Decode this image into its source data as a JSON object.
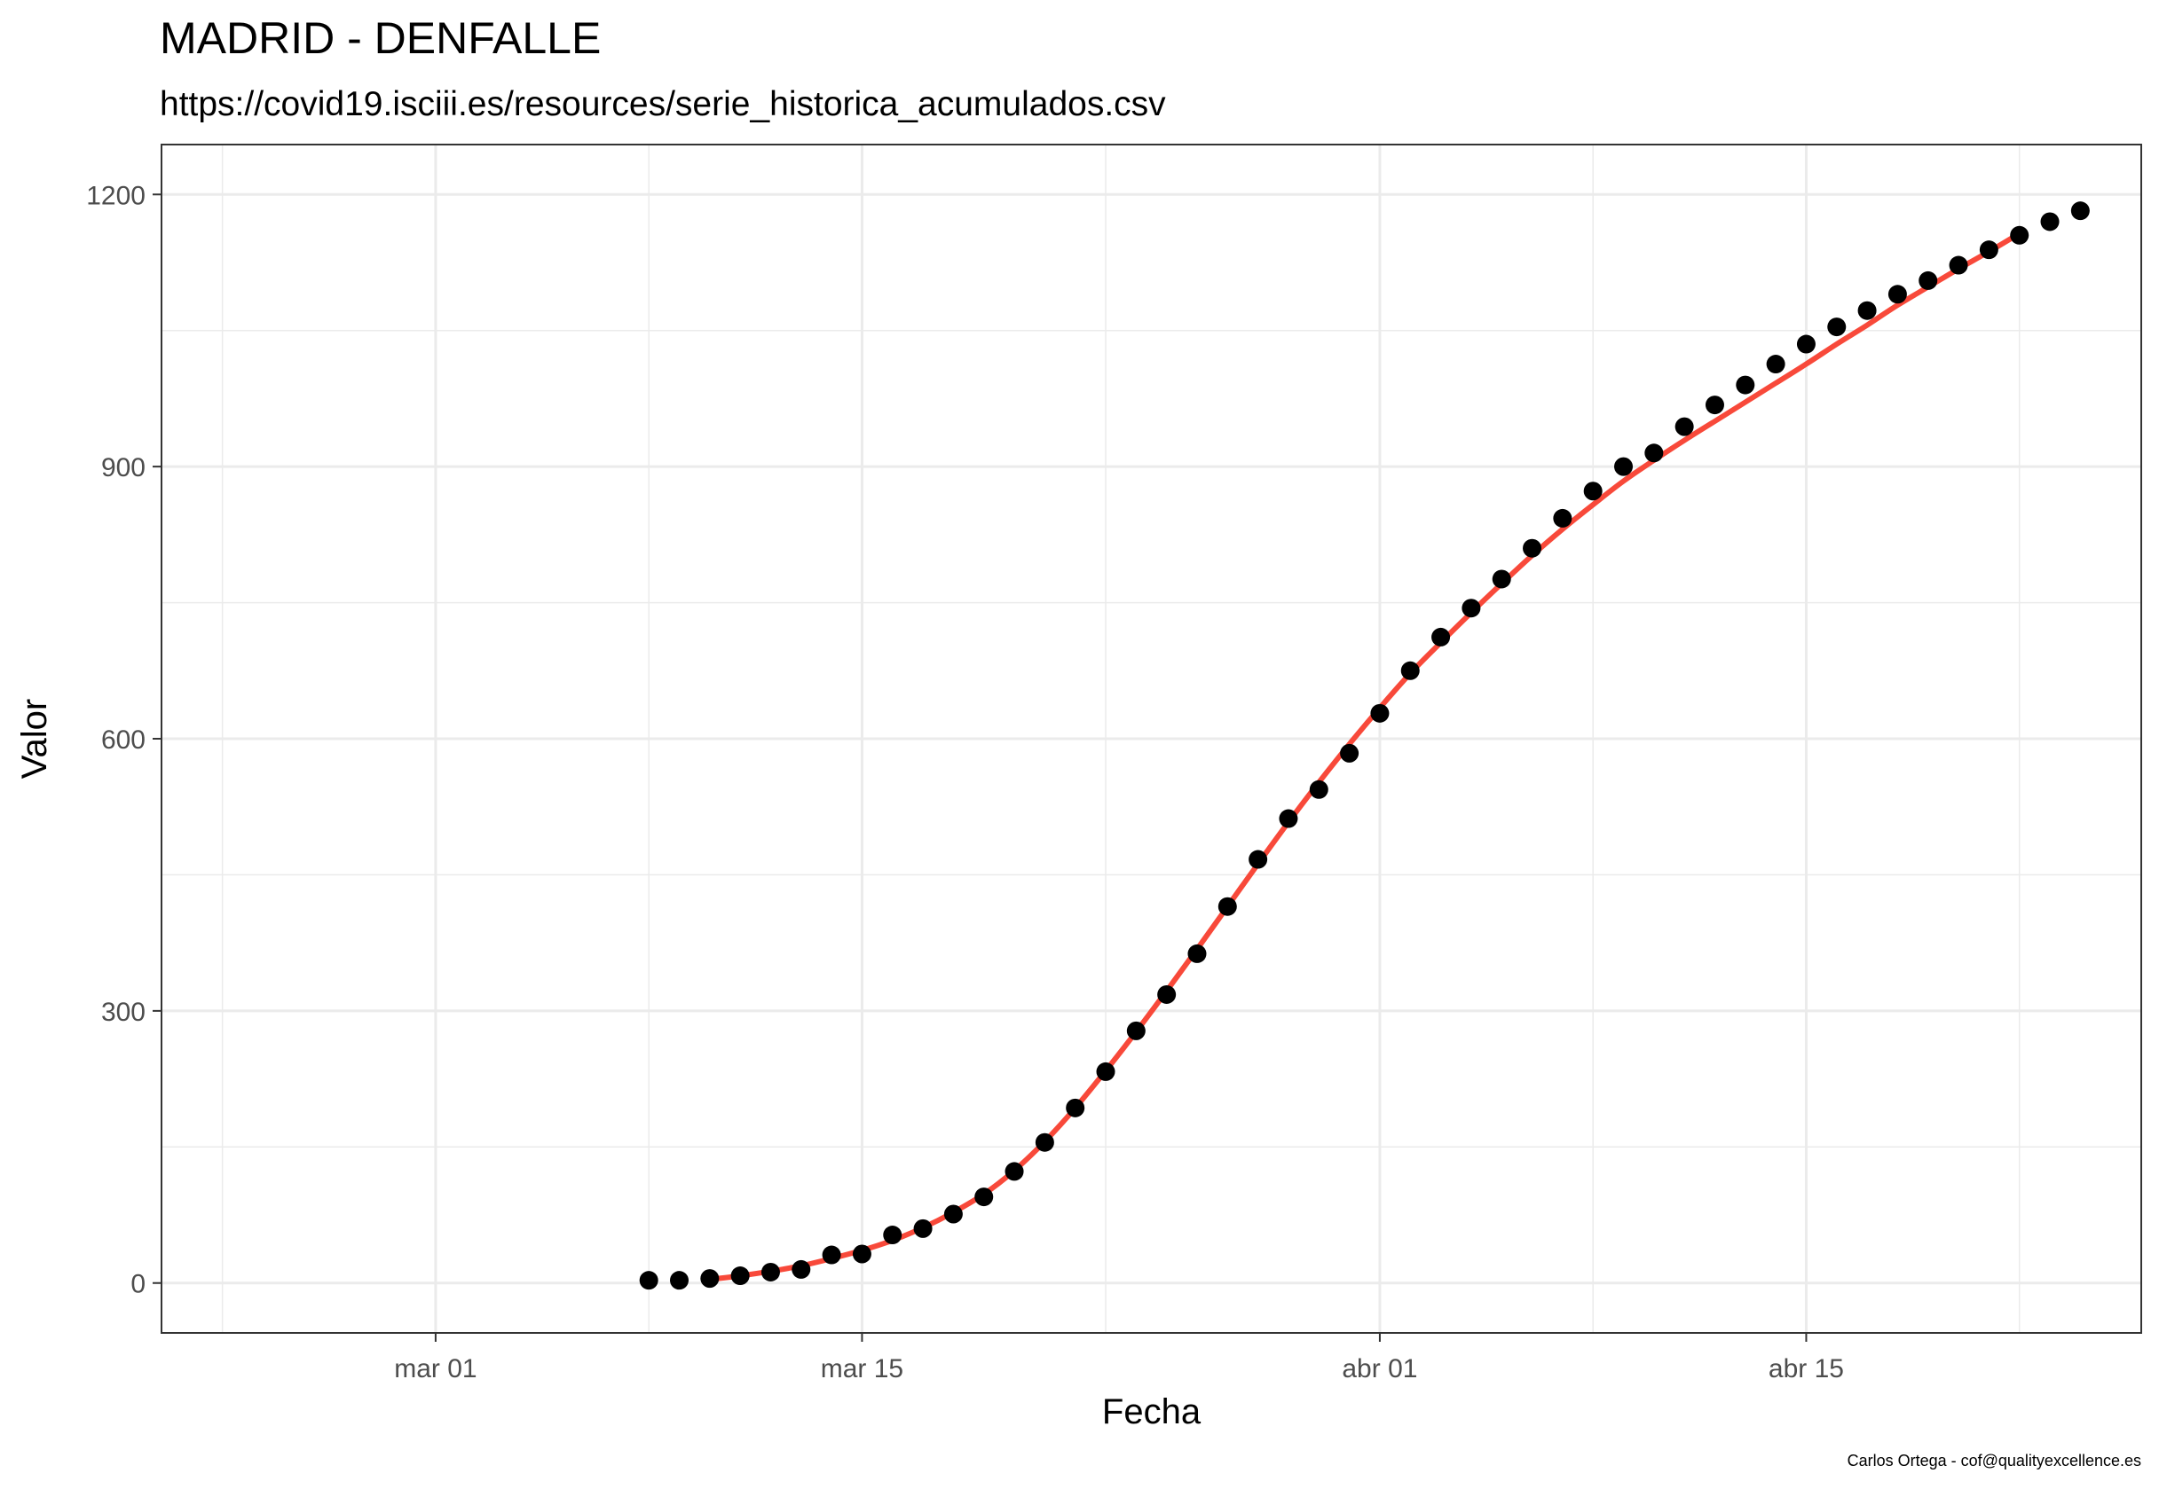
{
  "chart_data": {
    "type": "scatter",
    "title": "MADRID - DENFALLE",
    "subtitle": "https://covid19.isciii.es/resources/serie_historica_acumulados.csv",
    "xlabel": "Fecha",
    "ylabel": "Valor",
    "caption": "Carlos Ortega - cof@qualityexcellence.es",
    "xlim": [
      "2020-02-21",
      "2020-04-26"
    ],
    "ylim": [
      -55,
      1255
    ],
    "grid": true,
    "legend": "none",
    "x_ticks": [
      {
        "date": "2020-03-01",
        "label": "mar 01"
      },
      {
        "date": "2020-03-15",
        "label": "mar 15"
      },
      {
        "date": "2020-04-01",
        "label": "abr 01"
      },
      {
        "date": "2020-04-15",
        "label": "abr 15"
      }
    ],
    "x_minor_ticks": [
      "2020-02-23",
      "2020-03-08",
      "2020-03-23",
      "2020-04-08",
      "2020-04-22"
    ],
    "y_ticks": [
      0,
      300,
      600,
      900,
      1200
    ],
    "y_minor_ticks": [
      150,
      450,
      750,
      1050
    ],
    "series": [
      {
        "type": "points",
        "color": "#000000",
        "x": [
          "2020-03-08",
          "2020-03-09",
          "2020-03-10",
          "2020-03-11",
          "2020-03-12",
          "2020-03-13",
          "2020-03-14",
          "2020-03-15",
          "2020-03-16",
          "2020-03-17",
          "2020-03-18",
          "2020-03-19",
          "2020-03-20",
          "2020-03-21",
          "2020-03-22",
          "2020-03-23",
          "2020-03-24",
          "2020-03-25",
          "2020-03-26",
          "2020-03-27",
          "2020-03-28",
          "2020-03-29",
          "2020-03-30",
          "2020-03-31",
          "2020-04-01",
          "2020-04-02",
          "2020-04-03",
          "2020-04-04",
          "2020-04-05",
          "2020-04-06",
          "2020-04-07",
          "2020-04-08",
          "2020-04-09",
          "2020-04-10",
          "2020-04-11",
          "2020-04-12",
          "2020-04-13",
          "2020-04-14",
          "2020-04-15",
          "2020-04-16",
          "2020-04-17",
          "2020-04-18",
          "2020-04-19",
          "2020-04-20",
          "2020-04-21",
          "2020-04-22",
          "2020-04-23",
          "2020-04-24"
        ],
        "y": [
          3,
          3,
          5,
          8,
          12,
          15,
          31,
          32,
          53,
          60,
          76,
          95,
          123,
          155,
          193,
          233,
          278,
          318,
          363,
          415,
          467,
          512,
          544,
          584,
          628,
          675,
          712,
          744,
          776,
          810,
          843,
          873,
          900,
          915,
          944,
          968,
          990,
          1013,
          1035,
          1054,
          1072,
          1090,
          1105,
          1122,
          1139,
          1155,
          1170,
          1182
        ]
      },
      {
        "type": "smooth",
        "color": "#f8493a",
        "x": [
          "2020-03-10",
          "2020-03-11",
          "2020-03-12",
          "2020-03-13",
          "2020-03-14",
          "2020-03-15",
          "2020-03-16",
          "2020-03-17",
          "2020-03-18",
          "2020-03-19",
          "2020-03-20",
          "2020-03-21",
          "2020-03-22",
          "2020-03-23",
          "2020-03-24",
          "2020-03-25",
          "2020-03-26",
          "2020-03-27",
          "2020-03-28",
          "2020-03-29",
          "2020-03-30",
          "2020-03-31",
          "2020-04-01",
          "2020-04-02",
          "2020-04-03",
          "2020-04-04",
          "2020-04-05",
          "2020-04-06",
          "2020-04-07",
          "2020-04-08",
          "2020-04-09",
          "2020-04-10",
          "2020-04-11",
          "2020-04-12",
          "2020-04-13",
          "2020-04-14",
          "2020-04-15",
          "2020-04-16",
          "2020-04-17",
          "2020-04-18",
          "2020-04-19",
          "2020-04-20",
          "2020-04-21",
          "2020-04-22"
        ],
        "y": [
          4,
          8,
          13,
          19,
          27,
          36,
          47,
          61,
          78,
          98,
          124,
          156,
          193,
          234,
          277,
          322,
          368,
          415,
          462,
          508,
          552,
          594,
          634,
          672,
          706,
          739,
          771,
          802,
          831,
          858,
          884,
          907,
          929,
          950,
          971,
          992,
          1013,
          1035,
          1056,
          1078,
          1098,
          1118,
          1137,
          1157
        ]
      }
    ]
  }
}
